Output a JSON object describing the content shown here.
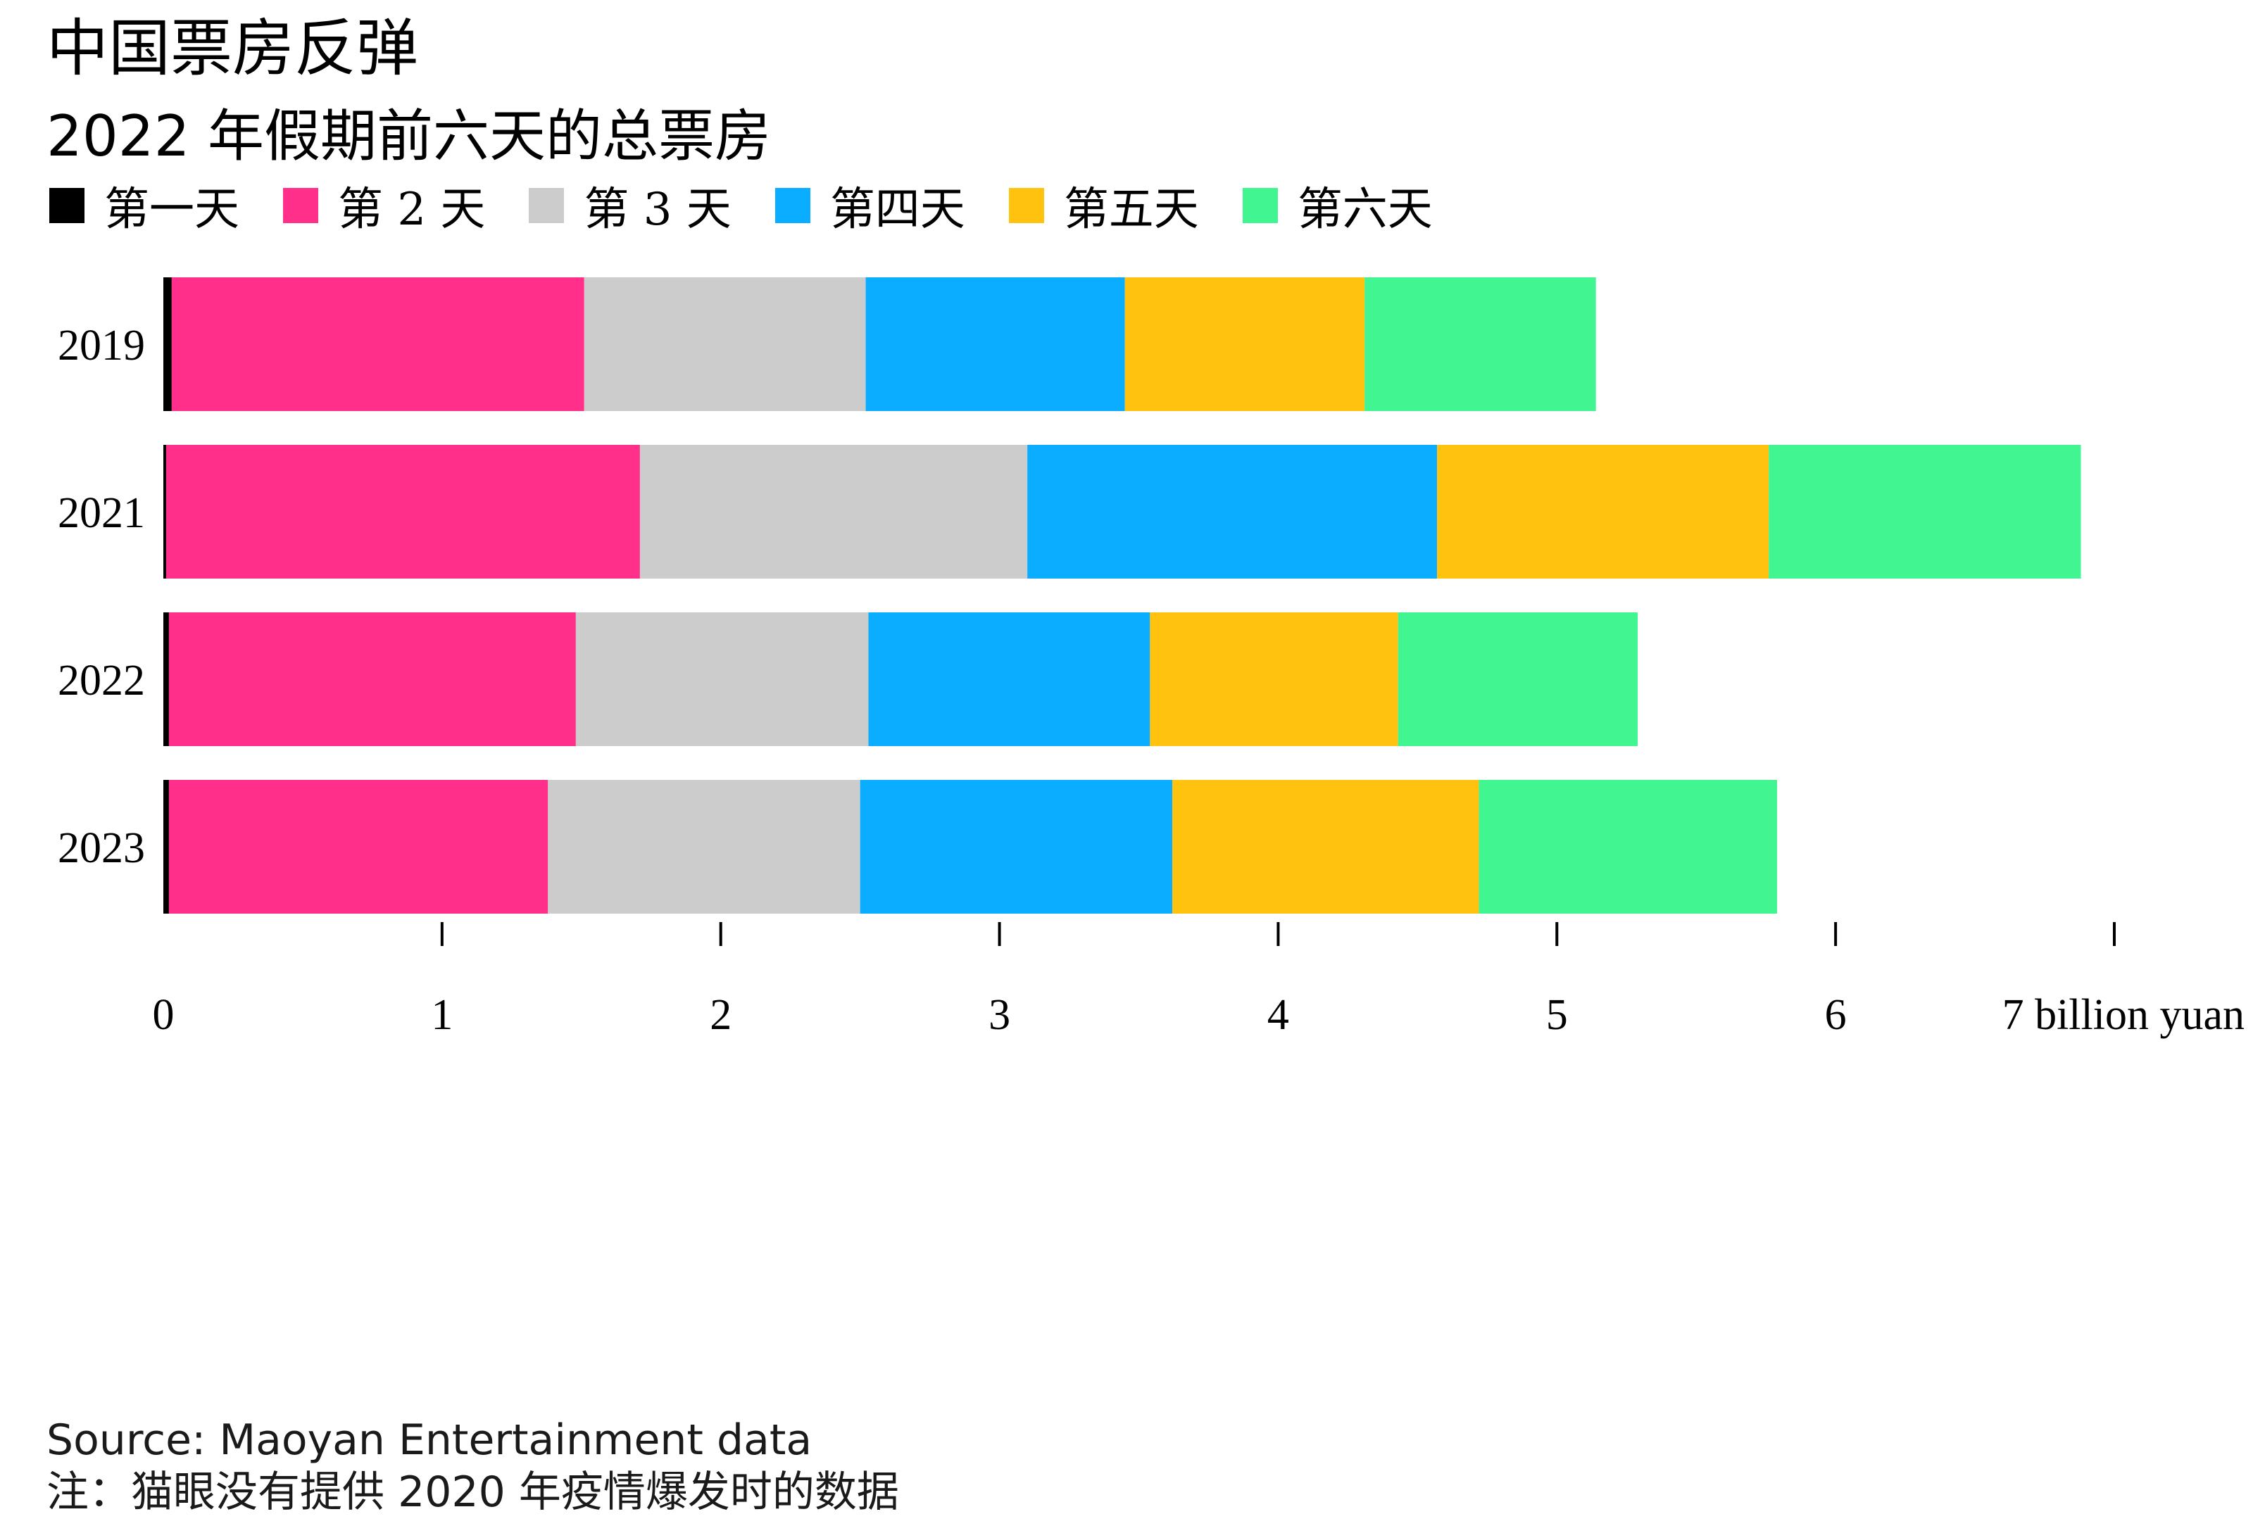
{
  "header": {
    "title": "中国票房反弹",
    "subtitle": "2022 年假期前六天的总票房"
  },
  "chart_data": {
    "type": "bar",
    "orientation": "horizontal",
    "stacked": true,
    "categories": [
      "2019",
      "2021",
      "2022",
      "2023"
    ],
    "series": [
      {
        "name": "第一天",
        "color": "#000000",
        "values": [
          0.03,
          0.01,
          0.02,
          0.02
        ]
      },
      {
        "name": "第 2 天",
        "color": "#FF2F8A",
        "values": [
          1.48,
          1.7,
          1.46,
          1.36
        ]
      },
      {
        "name": "第 3 天",
        "color": "#CCCCCC",
        "values": [
          1.01,
          1.39,
          1.05,
          1.12
        ]
      },
      {
        "name": "第四天",
        "color": "#0AADFF",
        "values": [
          0.93,
          1.47,
          1.01,
          1.12
        ]
      },
      {
        "name": "第五天",
        "color": "#FFC20E",
        "values": [
          0.86,
          1.19,
          0.89,
          1.1
        ]
      },
      {
        "name": "第六天",
        "color": "#41F591",
        "values": [
          0.83,
          1.12,
          0.86,
          1.07
        ]
      }
    ],
    "xlim": [
      0,
      7
    ],
    "x_ticks": [
      "0",
      "1",
      "2",
      "3",
      "4",
      "5",
      "6",
      "7 billion yuan"
    ],
    "legend_position": "top-left",
    "grid": false
  },
  "footer": {
    "source": "Source: Maoyan Entertainment data",
    "note": "注：猫眼没有提供 2020 年疫情爆发时的数据"
  }
}
